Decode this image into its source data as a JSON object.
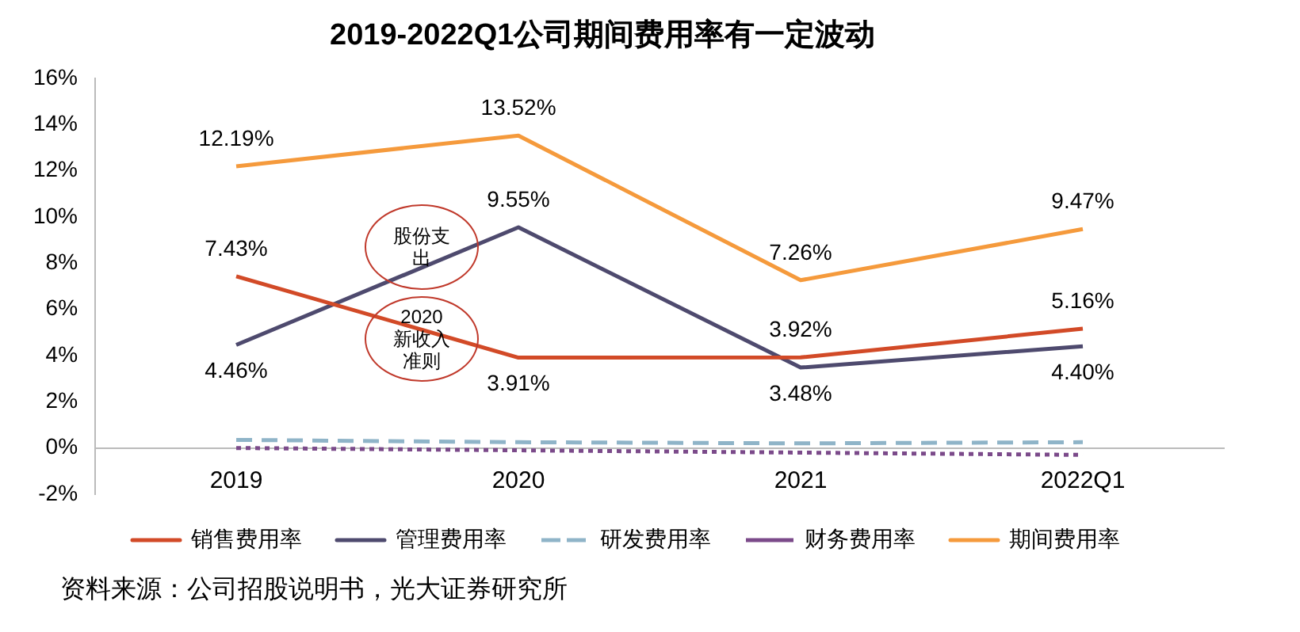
{
  "chart_data": {
    "type": "line",
    "title": "2019-2022Q1公司期间费用率有一定波动",
    "categories": [
      "2019",
      "2020",
      "2021",
      "2022Q1"
    ],
    "series": [
      {
        "name": "销售费用率",
        "color": "#d24a27",
        "values": [
          7.43,
          3.91,
          3.92,
          5.16
        ],
        "value_labels": [
          "7.43%",
          "3.91%",
          "3.92%",
          "5.16%"
        ],
        "line_style": "solid"
      },
      {
        "name": "管理费用率",
        "color": "#4e4a6e",
        "values": [
          4.46,
          9.55,
          3.48,
          4.4
        ],
        "value_labels": [
          "4.46%",
          "9.55%",
          "3.48%",
          "4.40%"
        ],
        "line_style": "solid"
      },
      {
        "name": "研发费用率",
        "color": "#8fb4c8",
        "values": [
          0.35,
          0.25,
          0.2,
          0.25
        ],
        "line_style": "dashed"
      },
      {
        "name": "财务费用率",
        "color": "#7b4a8a",
        "values": [
          0.0,
          -0.1,
          -0.2,
          -0.3
        ],
        "line_style": "dotted"
      },
      {
        "name": "期间费用率",
        "color": "#f59a3c",
        "values": [
          12.19,
          13.52,
          7.26,
          9.47
        ],
        "value_labels": [
          "12.19%",
          "13.52%",
          "7.26%",
          "9.47%"
        ],
        "line_style": "solid"
      }
    ],
    "ylim": [
      -2,
      16
    ],
    "yticks": [
      {
        "value": -2,
        "label": "-2%"
      },
      {
        "value": 0,
        "label": "0%"
      },
      {
        "value": 2,
        "label": "2%"
      },
      {
        "value": 4,
        "label": "4%"
      },
      {
        "value": 6,
        "label": "6%"
      },
      {
        "value": 8,
        "label": "8%"
      },
      {
        "value": 10,
        "label": "10%"
      },
      {
        "value": 12,
        "label": "12%"
      },
      {
        "value": 14,
        "label": "14%"
      },
      {
        "value": 16,
        "label": "16%"
      }
    ],
    "grid": false,
    "legend": "bottom",
    "marker": "none",
    "annotations": [
      "股份支出",
      "2020新收入准则",
      "资料来源：公司招股说明书，光大证券研究所"
    ]
  }
}
